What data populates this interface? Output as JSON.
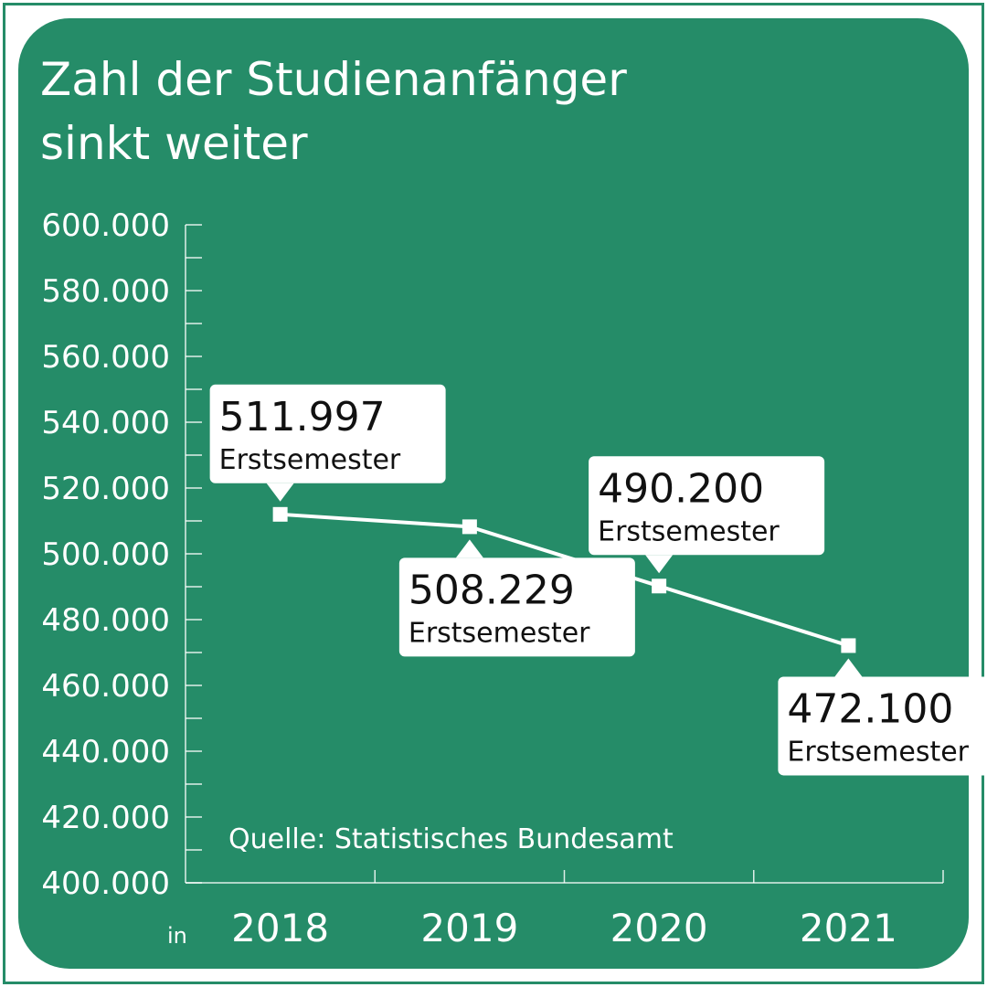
{
  "title": {
    "line1": "Zahl der Studienanfänger",
    "line2": "sinkt weiter"
  },
  "source": "Quelle: Statistisches Bundesamt",
  "x_unit_label": "in",
  "colors": {
    "background": "#258c68",
    "frame": "#258c68",
    "line": "#ffffff",
    "callout_fill": "#ffffff",
    "callout_text": "#111111"
  },
  "chart_data": {
    "type": "line",
    "title": "Zahl der Studienanfänger sinkt weiter",
    "xlabel": "in",
    "ylabel": "",
    "categories": [
      "2018",
      "2019",
      "2020",
      "2021"
    ],
    "series": [
      {
        "values": [
          511997,
          508229,
          490200,
          472100
        ]
      }
    ],
    "ylim": [
      400000,
      600000
    ],
    "y_ticks": [
      "400.000",
      "420.000",
      "440.000",
      "460.000",
      "480.000",
      "500.000",
      "520.000",
      "540.000",
      "560.000",
      "580.000",
      "600.000"
    ],
    "y_tick_values": [
      400000,
      420000,
      440000,
      460000,
      480000,
      500000,
      520000,
      540000,
      560000,
      580000,
      600000
    ],
    "annotations": [
      {
        "value_text": "511.997",
        "unit_text": "Erstsemester",
        "position": "above"
      },
      {
        "value_text": "508.229",
        "unit_text": "Erstsemester",
        "position": "below"
      },
      {
        "value_text": "490.200",
        "unit_text": "Erstsemester",
        "position": "above"
      },
      {
        "value_text": "472.100",
        "unit_text": "Erstsemester",
        "position": "below"
      }
    ],
    "grid": false,
    "legend": "none",
    "marker": "square"
  }
}
